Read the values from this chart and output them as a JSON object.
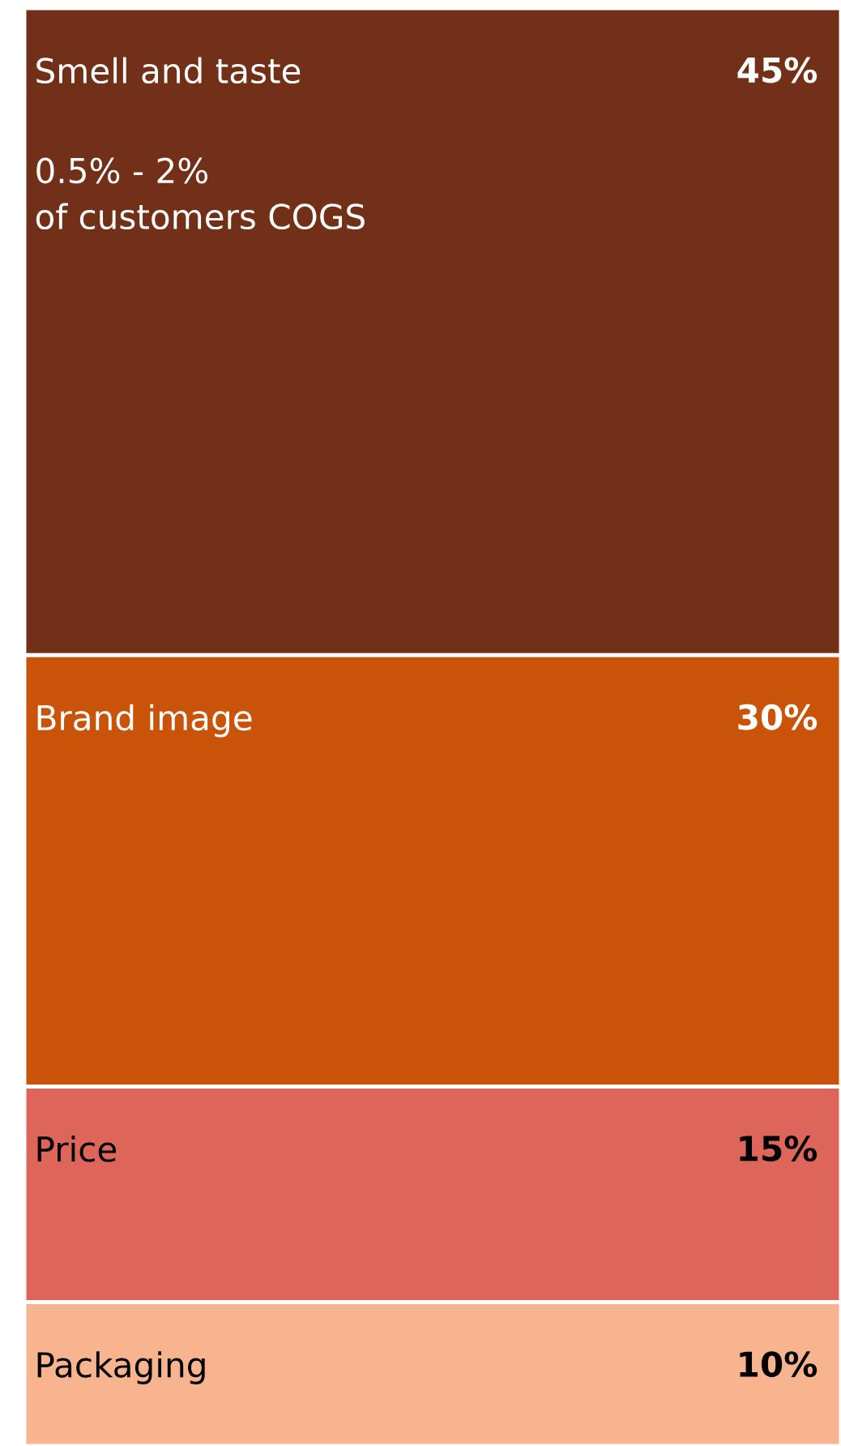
{
  "chart_data": {
    "type": "bar",
    "stacked": true,
    "categories": [
      null
    ],
    "series": [
      {
        "name": "Packaging",
        "color": "#f7b48e",
        "values": [
          10
        ],
        "value_labels": [
          "10%"
        ]
      },
      {
        "name": "Price",
        "color": "#dd655a",
        "values": [
          15
        ],
        "value_labels": [
          "15%"
        ]
      },
      {
        "name": "Brand image",
        "color": "#c85309",
        "values": [
          30
        ],
        "value_labels": [
          "30%"
        ]
      },
      {
        "name": "Smell and taste",
        "color": "#713017",
        "values": [
          45
        ],
        "value_labels": [
          "45%"
        ]
      }
    ],
    "annotations": [
      "0.5% - 2%",
      "of customers COGS"
    ]
  }
}
